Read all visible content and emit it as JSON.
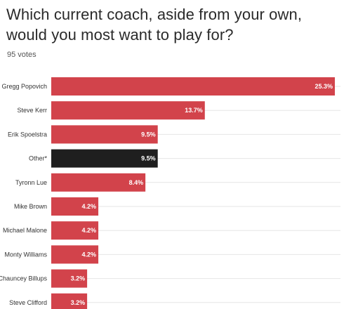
{
  "title": "Which current coach, aside from your own, would you most want to play for?",
  "votes_label": "95 votes",
  "chart_data": {
    "type": "bar",
    "orientation": "horizontal",
    "categories": [
      "Gregg Popovich",
      "Steve Kerr",
      "Erik Spoelstra",
      "Other*",
      "Tyronn Lue",
      "Mike Brown",
      "Michael Malone",
      "Monty Williams",
      "Chauncey Billups",
      "Steve Clifford"
    ],
    "values": [
      25.3,
      13.7,
      9.5,
      9.5,
      8.4,
      4.2,
      4.2,
      4.2,
      3.2,
      3.2
    ],
    "value_labels": [
      "25.3%",
      "13.7%",
      "9.5%",
      "9.5%",
      "8.4%",
      "4.2%",
      "4.2%",
      "4.2%",
      "3.2%",
      "3.2%"
    ],
    "bar_colors": [
      "#d2434b",
      "#d2434b",
      "#d2434b",
      "#1f1f1f",
      "#d2434b",
      "#d2434b",
      "#d2434b",
      "#d2434b",
      "#d2434b",
      "#d2434b"
    ],
    "xlim": [
      0,
      25.3
    ],
    "grid": true,
    "gridline_color": "#e6e6e6"
  }
}
